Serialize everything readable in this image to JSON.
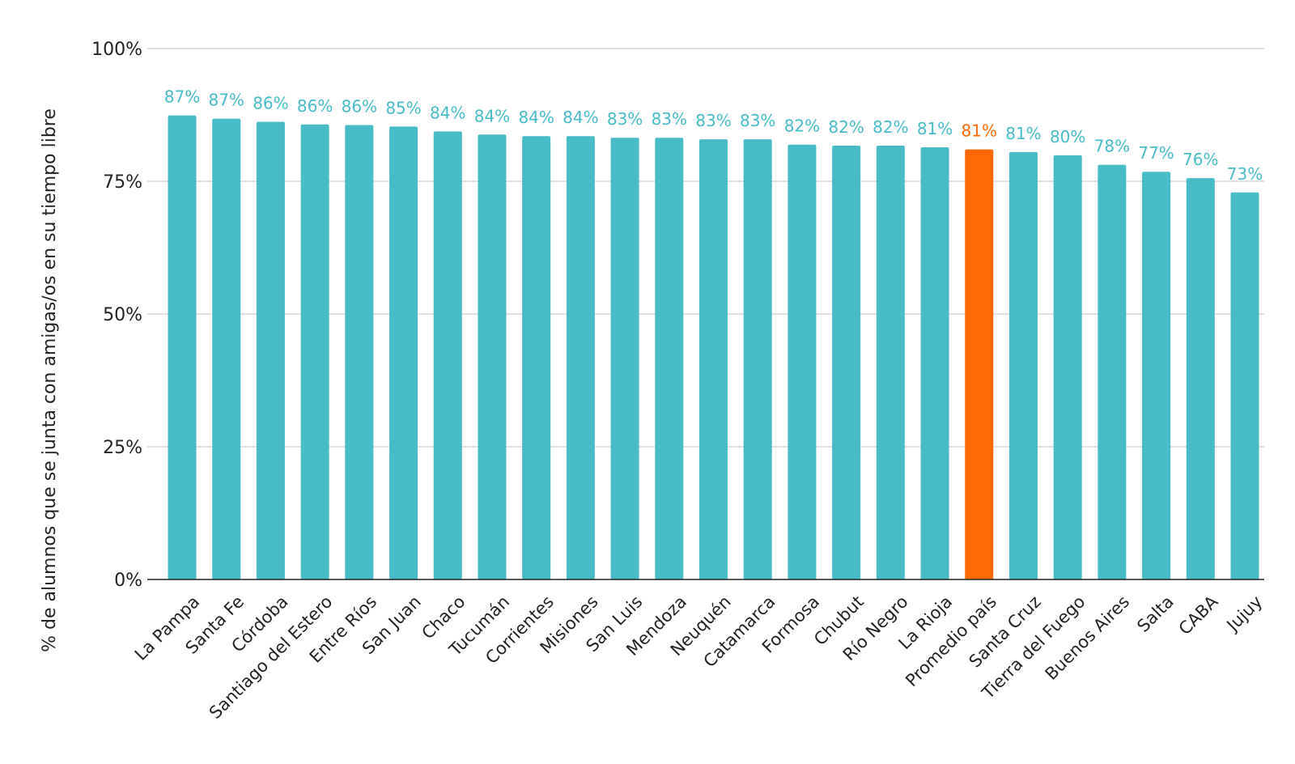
{
  "chart_data": {
    "type": "bar",
    "title": "",
    "xlabel": "",
    "ylabel": "% de alumnos que se junta con amigas/os en su tiempo libre",
    "ylim": [
      0,
      100
    ],
    "yticks": [
      0,
      25,
      50,
      75,
      100
    ],
    "ytick_labels": [
      "0%",
      "25%",
      "50%",
      "75%",
      "100%"
    ],
    "grid": true,
    "legend": "none",
    "categories": [
      "La Pampa",
      "Santa Fe",
      "Córdoba",
      "Santiago del Estero",
      "Entre Ríos",
      "San Juan",
      "Chaco",
      "Tucumán",
      "Corrientes",
      "Misiones",
      "San Luis",
      "Mendoza",
      "Neuquén",
      "Catamarca",
      "Formosa",
      "Chubut",
      "Río Negro",
      "La Rioja",
      "Promedio país",
      "Santa Cruz",
      "Tierra del Fuego",
      "Buenos Aires",
      "Salta",
      "CABA",
      "Jujuy"
    ],
    "values": [
      87.4,
      86.8,
      86.2,
      85.7,
      85.6,
      85.3,
      84.4,
      83.8,
      83.5,
      83.5,
      83.2,
      83.2,
      82.9,
      82.9,
      81.9,
      81.7,
      81.7,
      81.4,
      81.0,
      80.5,
      79.9,
      78.1,
      76.8,
      75.6,
      72.9
    ],
    "data_labels": [
      "87%",
      "87%",
      "86%",
      "86%",
      "86%",
      "85%",
      "84%",
      "84%",
      "84%",
      "84%",
      "83%",
      "83%",
      "83%",
      "83%",
      "82%",
      "82%",
      "82%",
      "81%",
      "81%",
      "81%",
      "80%",
      "78%",
      "77%",
      "76%",
      "73%"
    ],
    "highlight_index": 18,
    "colors": {
      "bar": "#47bcc6",
      "highlight": "#ff6a07",
      "label": "#47bcc6",
      "highlight_label": "#ff6a07"
    }
  }
}
